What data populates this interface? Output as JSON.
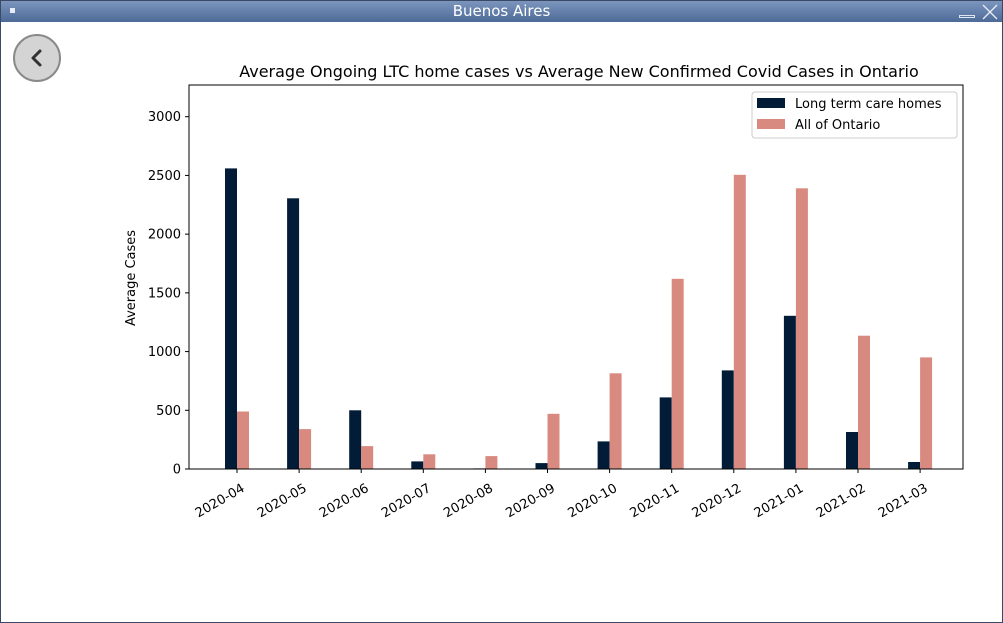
{
  "window": {
    "title": "Buenos Aires"
  },
  "colors": {
    "ltc": "#021b36",
    "ontario": "#d98a80",
    "titlebar": "#5e7aa7"
  },
  "icons": {
    "back": "chevron-left-icon",
    "close": "close-icon",
    "minimize": "minimize-icon",
    "menu": "window-menu-icon"
  },
  "chart_data": {
    "type": "bar",
    "title": "Average Ongoing LTC home cases vs Average New Confirmed Covid Cases in Ontario",
    "xlabel": "",
    "ylabel": "Average Cases",
    "ylim": [
      0,
      3270
    ],
    "yticks": [
      0,
      500,
      1000,
      1500,
      2000,
      2500,
      3000
    ],
    "legend": "top-right",
    "grid": false,
    "categories": [
      "2020-04",
      "2020-05",
      "2020-06",
      "2020-07",
      "2020-08",
      "2020-09",
      "2020-10",
      "2020-11",
      "2020-12",
      "2021-01",
      "2021-02",
      "2021-03"
    ],
    "series": [
      {
        "name": "Long term care homes",
        "values": [
          2560,
          2305,
          500,
          65,
          5,
          50,
          235,
          610,
          840,
          1305,
          315,
          60
        ]
      },
      {
        "name": "All of Ontario",
        "values": [
          490,
          340,
          195,
          125,
          110,
          470,
          815,
          1620,
          2505,
          2390,
          1135,
          950
        ]
      }
    ]
  }
}
